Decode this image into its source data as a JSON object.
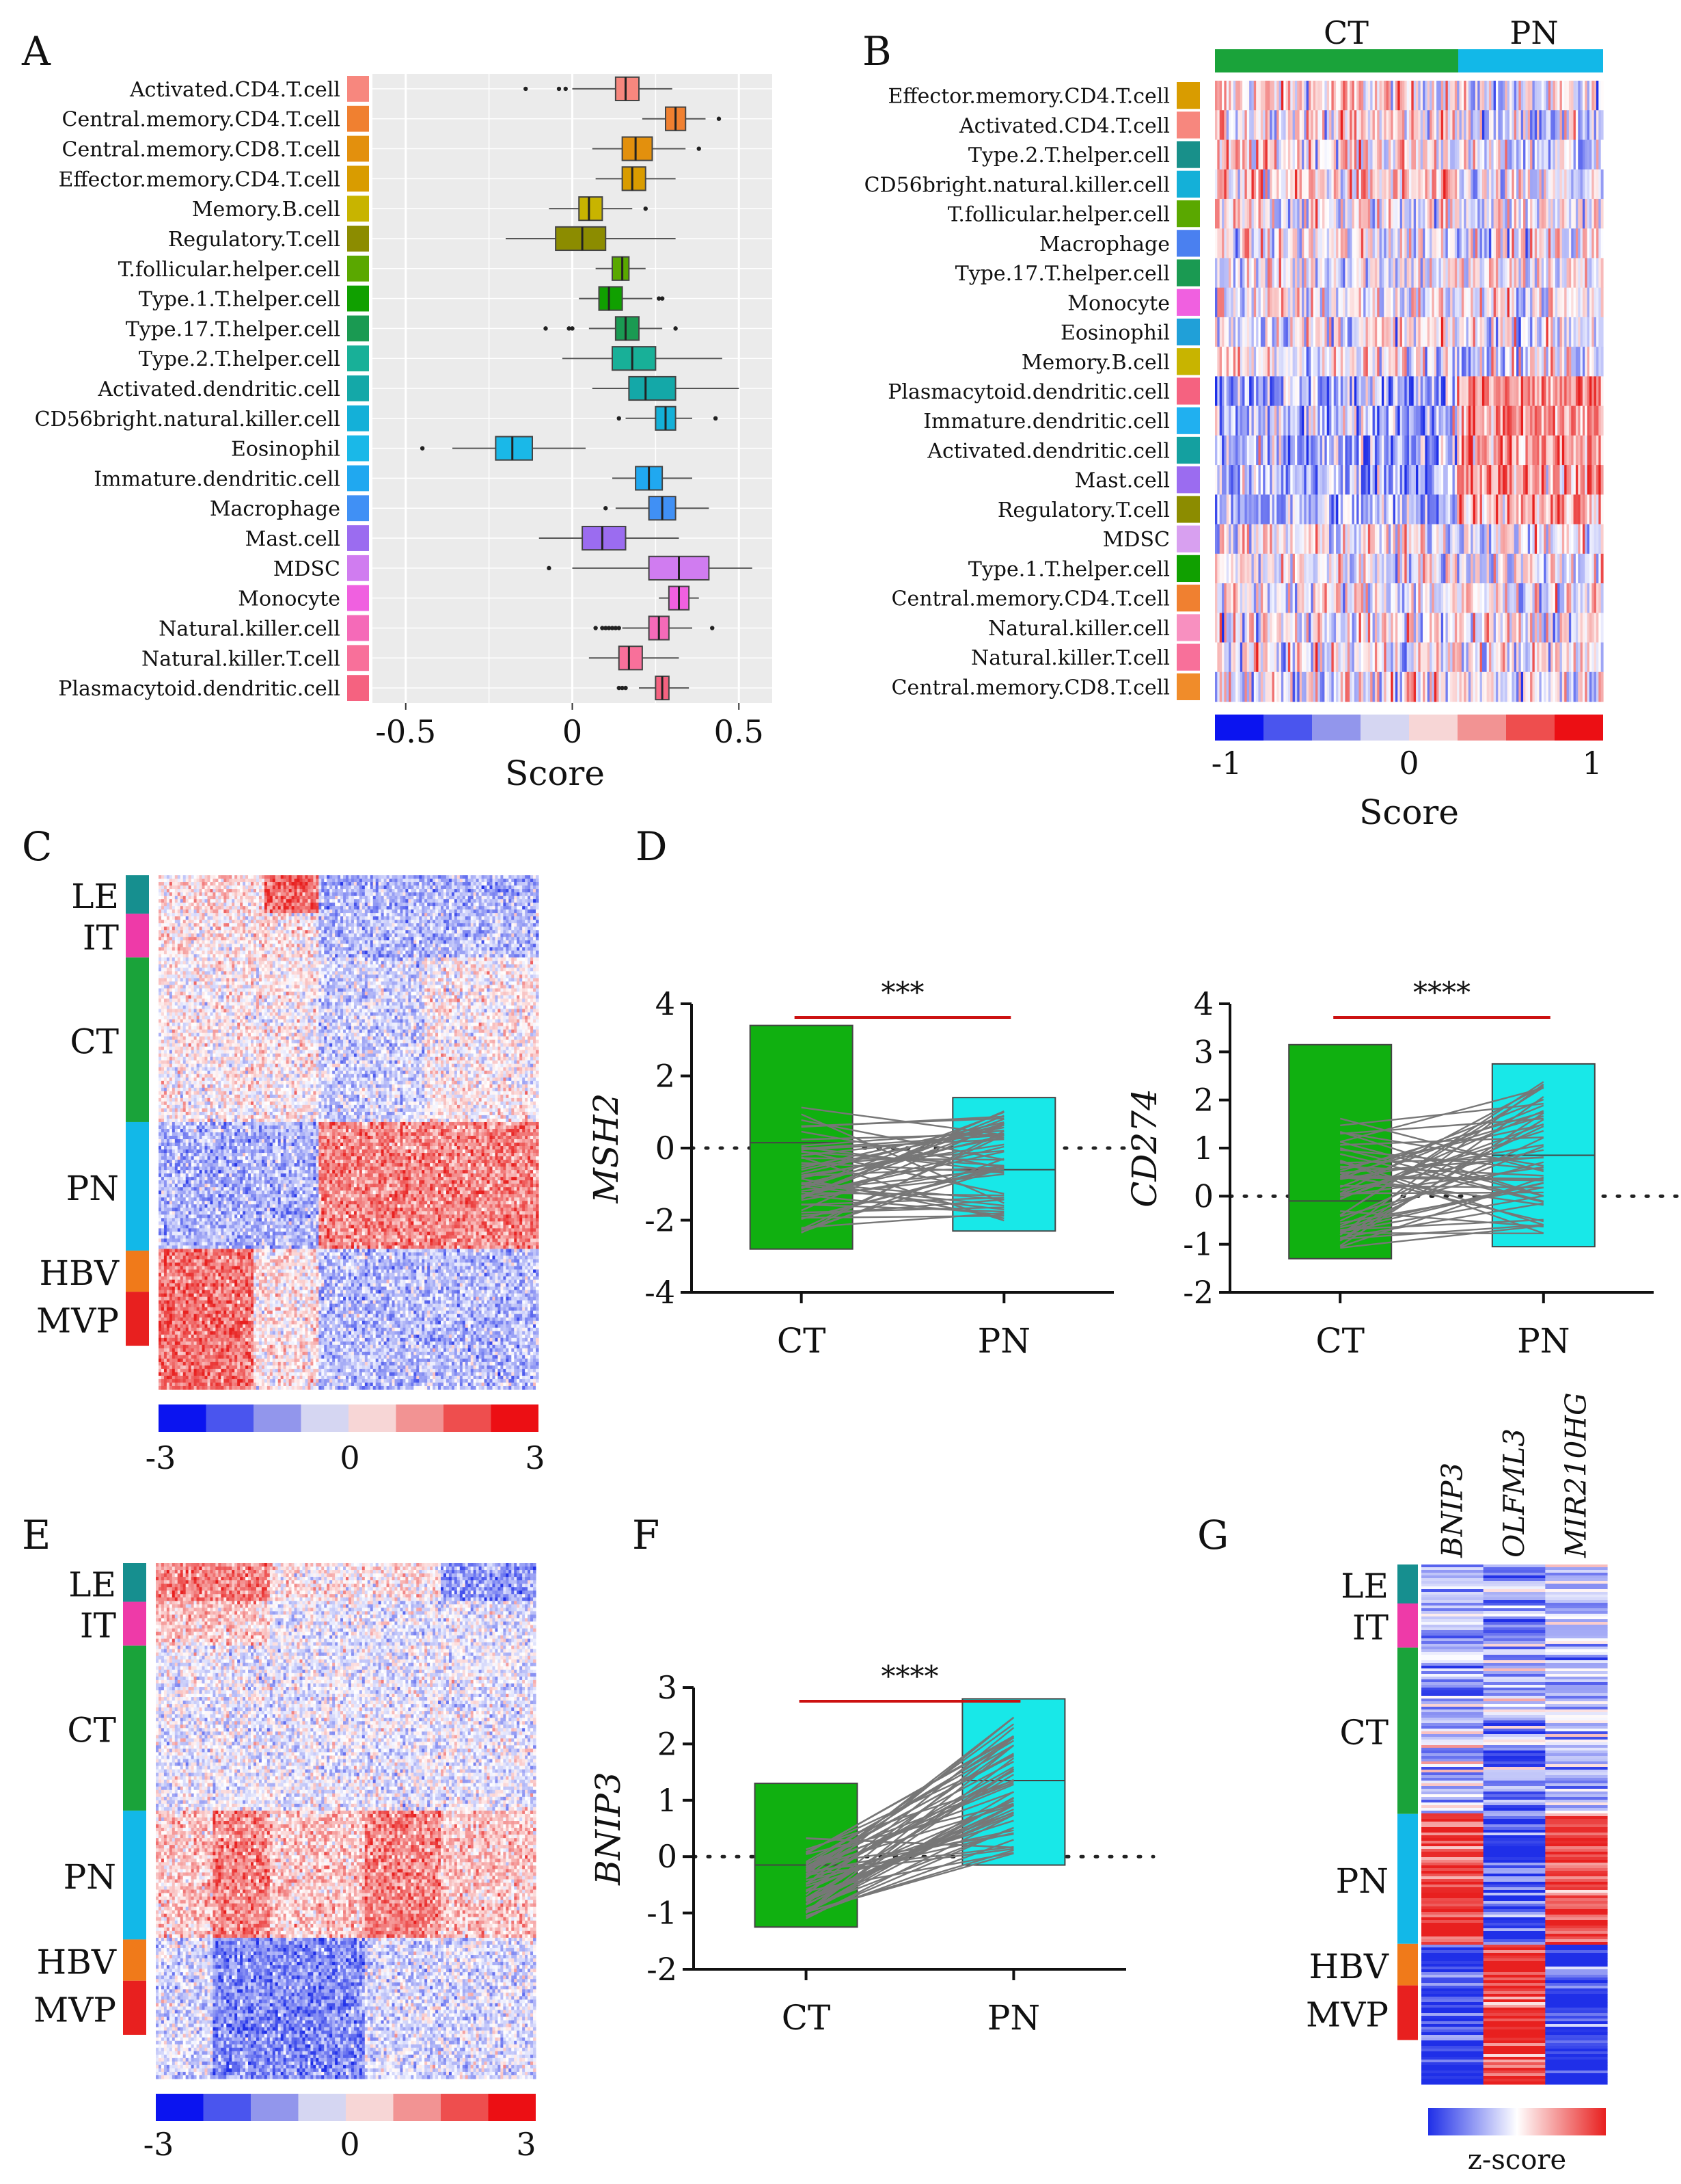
{
  "palette": {
    "ct": "#1aa33a",
    "pn": "#12b8e8",
    "blue": "#1f2fe8",
    "red": "#e8201f",
    "it": "#ee3aa8",
    "le": "#168f8f",
    "hbv": "#f07a1a",
    "mvp": "#e8201f",
    "cyan": "#18e8e8",
    "green": "#10b010",
    "line": "#777777",
    "redline": "#cc1111",
    "panel_bg": "#ebebeb"
  },
  "chart_data": [
    {
      "id": "A",
      "panel_label": "A",
      "type": "boxplot",
      "xlabel": "Score",
      "xlim": [
        -0.6,
        0.6
      ],
      "xticks": [
        "-0.5",
        "0",
        "0.5"
      ],
      "categories": [
        {
          "name": "Activated.CD4.T.cell",
          "color": "#f7877e",
          "q1": 0.13,
          "med": 0.16,
          "q3": 0.2,
          "lo": 0.0,
          "hi": 0.3,
          "out": [
            -0.14,
            -0.04,
            -0.02
          ]
        },
        {
          "name": "Central.memory.CD4.T.cell",
          "color": "#f08030",
          "q1": 0.28,
          "med": 0.31,
          "q3": 0.34,
          "lo": 0.21,
          "hi": 0.4,
          "out": [
            0.44
          ]
        },
        {
          "name": "Central.memory.CD8.T.cell",
          "color": "#e3900d",
          "q1": 0.15,
          "med": 0.19,
          "q3": 0.24,
          "lo": 0.06,
          "hi": 0.34,
          "out": [
            0.38
          ]
        },
        {
          "name": "Effector.memory.CD4.T.cell",
          "color": "#d99c00",
          "q1": 0.15,
          "med": 0.18,
          "q3": 0.22,
          "lo": 0.07,
          "hi": 0.31,
          "out": []
        },
        {
          "name": "Memory.B.cell",
          "color": "#c8b400",
          "q1": 0.02,
          "med": 0.05,
          "q3": 0.09,
          "lo": -0.07,
          "hi": 0.18,
          "out": [
            0.22
          ]
        },
        {
          "name": "Regulatory.T.cell",
          "color": "#8c8c00",
          "q1": -0.05,
          "med": 0.03,
          "q3": 0.1,
          "lo": -0.2,
          "hi": 0.31,
          "out": []
        },
        {
          "name": "T.follicular.helper.cell",
          "color": "#5aa800",
          "q1": 0.12,
          "med": 0.15,
          "q3": 0.17,
          "lo": 0.07,
          "hi": 0.22,
          "out": []
        },
        {
          "name": "Type.1.T.helper.cell",
          "color": "#10a000",
          "q1": 0.08,
          "med": 0.11,
          "q3": 0.15,
          "lo": 0.02,
          "hi": 0.24,
          "out": [
            0.26,
            0.27
          ]
        },
        {
          "name": "Type.17.T.helper.cell",
          "color": "#1a9a52",
          "q1": 0.13,
          "med": 0.16,
          "q3": 0.2,
          "lo": 0.05,
          "hi": 0.27,
          "out": [
            -0.08,
            -0.01,
            0.0,
            0.31
          ]
        },
        {
          "name": "Type.2.T.helper.cell",
          "color": "#18b098",
          "q1": 0.12,
          "med": 0.18,
          "q3": 0.25,
          "lo": -0.03,
          "hi": 0.45,
          "out": []
        },
        {
          "name": "Activated.dendritic.cell",
          "color": "#14a8a8",
          "q1": 0.17,
          "med": 0.22,
          "q3": 0.31,
          "lo": 0.06,
          "hi": 0.5,
          "out": []
        },
        {
          "name": "CD56bright.natural.killer.cell",
          "color": "#14b0d8",
          "q1": 0.25,
          "med": 0.28,
          "q3": 0.31,
          "lo": 0.16,
          "hi": 0.36,
          "out": [
            0.14,
            0.43
          ]
        },
        {
          "name": "Eosinophil",
          "color": "#1ab8e8",
          "q1": -0.23,
          "med": -0.18,
          "q3": -0.12,
          "lo": -0.36,
          "hi": 0.04,
          "out": [
            -0.45
          ]
        },
        {
          "name": "Immature.dendritic.cell",
          "color": "#20a8f0",
          "q1": 0.19,
          "med": 0.23,
          "q3": 0.27,
          "lo": 0.12,
          "hi": 0.36,
          "out": []
        },
        {
          "name": "Macrophage",
          "color": "#4090f5",
          "q1": 0.23,
          "med": 0.27,
          "q3": 0.31,
          "lo": 0.13,
          "hi": 0.41,
          "out": [
            0.1
          ]
        },
        {
          "name": "Mast.cell",
          "color": "#9b6cf0",
          "q1": 0.03,
          "med": 0.09,
          "q3": 0.16,
          "lo": -0.1,
          "hi": 0.32,
          "out": []
        },
        {
          "name": "MDSC",
          "color": "#d07cf0",
          "q1": 0.23,
          "med": 0.32,
          "q3": 0.41,
          "lo": 0.0,
          "hi": 0.54,
          "out": [
            -0.07
          ]
        },
        {
          "name": "Monocyte",
          "color": "#f060e0",
          "q1": 0.29,
          "med": 0.32,
          "q3": 0.35,
          "lo": 0.26,
          "hi": 0.38,
          "out": []
        },
        {
          "name": "Natural.killer.cell",
          "color": "#f56ab8",
          "q1": 0.23,
          "med": 0.26,
          "q3": 0.29,
          "lo": 0.15,
          "hi": 0.36,
          "out": [
            0.07,
            0.09,
            0.1,
            0.11,
            0.12,
            0.13,
            0.14,
            0.42
          ]
        },
        {
          "name": "Natural.killer.T.cell",
          "color": "#f8709a",
          "q1": 0.14,
          "med": 0.17,
          "q3": 0.21,
          "lo": 0.05,
          "hi": 0.32,
          "out": []
        },
        {
          "name": "Plasmacytoid.dendritic.cell",
          "color": "#f56280",
          "q1": 0.25,
          "med": 0.27,
          "q3": 0.29,
          "lo": 0.2,
          "hi": 0.35,
          "out": [
            0.14,
            0.15,
            0.16
          ]
        }
      ]
    },
    {
      "id": "B",
      "panel_label": "B",
      "type": "heatmap",
      "groups": [
        "CT",
        "PN"
      ],
      "rows": [
        {
          "name": "Effector.memory.CD4.T.cell",
          "color": "#d99c00"
        },
        {
          "name": "Activated.CD4.T.cell",
          "color": "#f7877e"
        },
        {
          "name": "Type.2.T.helper.cell",
          "color": "#18908a"
        },
        {
          "name": "CD56bright.natural.killer.cell",
          "color": "#14b0d8"
        },
        {
          "name": "T.follicular.helper.cell",
          "color": "#5aa800"
        },
        {
          "name": "Macrophage",
          "color": "#4a80f0"
        },
        {
          "name": "Type.17.T.helper.cell",
          "color": "#1a9a52"
        },
        {
          "name": "Monocyte",
          "color": "#f060e0"
        },
        {
          "name": "Eosinophil",
          "color": "#20a0d8"
        },
        {
          "name": "Memory.B.cell",
          "color": "#c8b400"
        },
        {
          "name": "Plasmacytoid.dendritic.cell",
          "color": "#f56280"
        },
        {
          "name": "Immature.dendritic.cell",
          "color": "#20b0f0"
        },
        {
          "name": "Activated.dendritic.cell",
          "color": "#14a0a0"
        },
        {
          "name": "Mast.cell",
          "color": "#9b6cf0"
        },
        {
          "name": "Regulatory.T.cell",
          "color": "#8c8c00"
        },
        {
          "name": "MDSC",
          "color": "#d8a0f0"
        },
        {
          "name": "Type.1.T.helper.cell",
          "color": "#10a000"
        },
        {
          "name": "Central.memory.CD4.T.cell",
          "color": "#f08030"
        },
        {
          "name": "Natural.killer.cell",
          "color": "#f890c0"
        },
        {
          "name": "Natural.killer.T.cell",
          "color": "#f8709a"
        },
        {
          "name": "Central.memory.CD8.T.cell",
          "color": "#f08c2a"
        }
      ],
      "legend": {
        "title": "Score",
        "min_label": "-1",
        "mid_label": "0",
        "max_label": "1"
      }
    },
    {
      "id": "C",
      "panel_label": "C",
      "type": "heatmap",
      "groups": [
        "LE",
        "IT",
        "CT",
        "PN",
        "HBV",
        "MVP"
      ],
      "legend": {
        "min_label": "-3",
        "mid_label": "0",
        "max_label": "3"
      }
    },
    {
      "id": "D1",
      "panel_label": "D",
      "type": "paired-boxplot",
      "ylabel": "MSH2",
      "ylim": [
        -4,
        4
      ],
      "yticks": [
        "-4",
        "-2",
        "0",
        "2",
        "4"
      ],
      "categories": [
        "CT",
        "PN"
      ],
      "boxes": [
        {
          "min": -2.8,
          "med": 0.15,
          "max": 3.4
        },
        {
          "min": -2.3,
          "med": -0.6,
          "max": 1.4
        }
      ],
      "significance": "***"
    },
    {
      "id": "D2",
      "panel_label": "",
      "type": "paired-boxplot",
      "ylabel": "CD274",
      "ylim": [
        -2,
        4
      ],
      "yticks": [
        "-2",
        "-1",
        "0",
        "1",
        "2",
        "3",
        "4"
      ],
      "categories": [
        "CT",
        "PN"
      ],
      "boxes": [
        {
          "min": -1.3,
          "med": -0.1,
          "max": 3.15
        },
        {
          "min": -1.05,
          "med": 0.85,
          "max": 2.75
        }
      ],
      "significance": "****"
    },
    {
      "id": "E",
      "panel_label": "E",
      "type": "heatmap",
      "groups": [
        "LE",
        "IT",
        "CT",
        "PN",
        "HBV",
        "MVP"
      ],
      "legend": {
        "min_label": "-3",
        "mid_label": "0",
        "max_label": "3"
      }
    },
    {
      "id": "F",
      "panel_label": "F",
      "type": "paired-boxplot",
      "ylabel": "BNIP3",
      "ylim": [
        -2,
        3
      ],
      "yticks": [
        "-2",
        "-1",
        "0",
        "1",
        "2",
        "3"
      ],
      "categories": [
        "CT",
        "PN"
      ],
      "boxes": [
        {
          "min": -1.25,
          "med": -0.15,
          "max": 1.3
        },
        {
          "min": -0.15,
          "med": 1.35,
          "max": 2.8
        }
      ],
      "significance": "****"
    },
    {
      "id": "G",
      "panel_label": "G",
      "type": "heatmap",
      "columns": [
        "BNIP3",
        "OLFML3",
        "MIR210HG"
      ],
      "groups": [
        "LE",
        "IT",
        "CT",
        "PN",
        "HBV",
        "MVP"
      ],
      "legend": {
        "title": "z-score"
      }
    }
  ]
}
